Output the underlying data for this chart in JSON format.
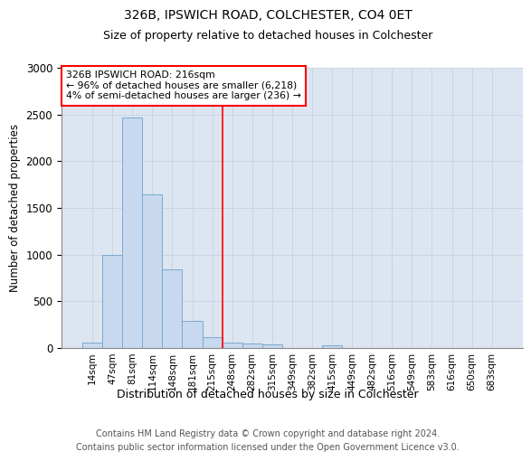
{
  "title": "326B, IPSWICH ROAD, COLCHESTER, CO4 0ET",
  "subtitle": "Size of property relative to detached houses in Colchester",
  "xlabel": "Distribution of detached houses by size in Colchester",
  "ylabel": "Number of detached properties",
  "categories": [
    "14sqm",
    "47sqm",
    "81sqm",
    "114sqm",
    "148sqm",
    "181sqm",
    "215sqm",
    "248sqm",
    "282sqm",
    "315sqm",
    "349sqm",
    "382sqm",
    "415sqm",
    "449sqm",
    "482sqm",
    "516sqm",
    "549sqm",
    "583sqm",
    "616sqm",
    "650sqm",
    "683sqm"
  ],
  "values": [
    60,
    1000,
    2470,
    1650,
    840,
    290,
    115,
    55,
    50,
    40,
    0,
    0,
    30,
    0,
    0,
    0,
    0,
    0,
    0,
    0,
    0
  ],
  "bar_color": "#c8d8ee",
  "bar_edge_color": "#7aaad0",
  "property_line_index": 6,
  "property_label": "326B IPSWICH ROAD: 216sqm",
  "annotation_line1": "← 96% of detached houses are smaller (6,218)",
  "annotation_line2": "4% of semi-detached houses are larger (236) →",
  "annotation_box_color": "red",
  "grid_color": "#c8d4e8",
  "background_color": "#dde5f0",
  "ylim": [
    0,
    3000
  ],
  "yticks": [
    0,
    500,
    1000,
    1500,
    2000,
    2500,
    3000
  ],
  "title_fontsize": 10,
  "subtitle_fontsize": 9,
  "footer_line1": "Contains HM Land Registry data © Crown copyright and database right 2024.",
  "footer_line2": "Contains public sector information licensed under the Open Government Licence v3.0."
}
